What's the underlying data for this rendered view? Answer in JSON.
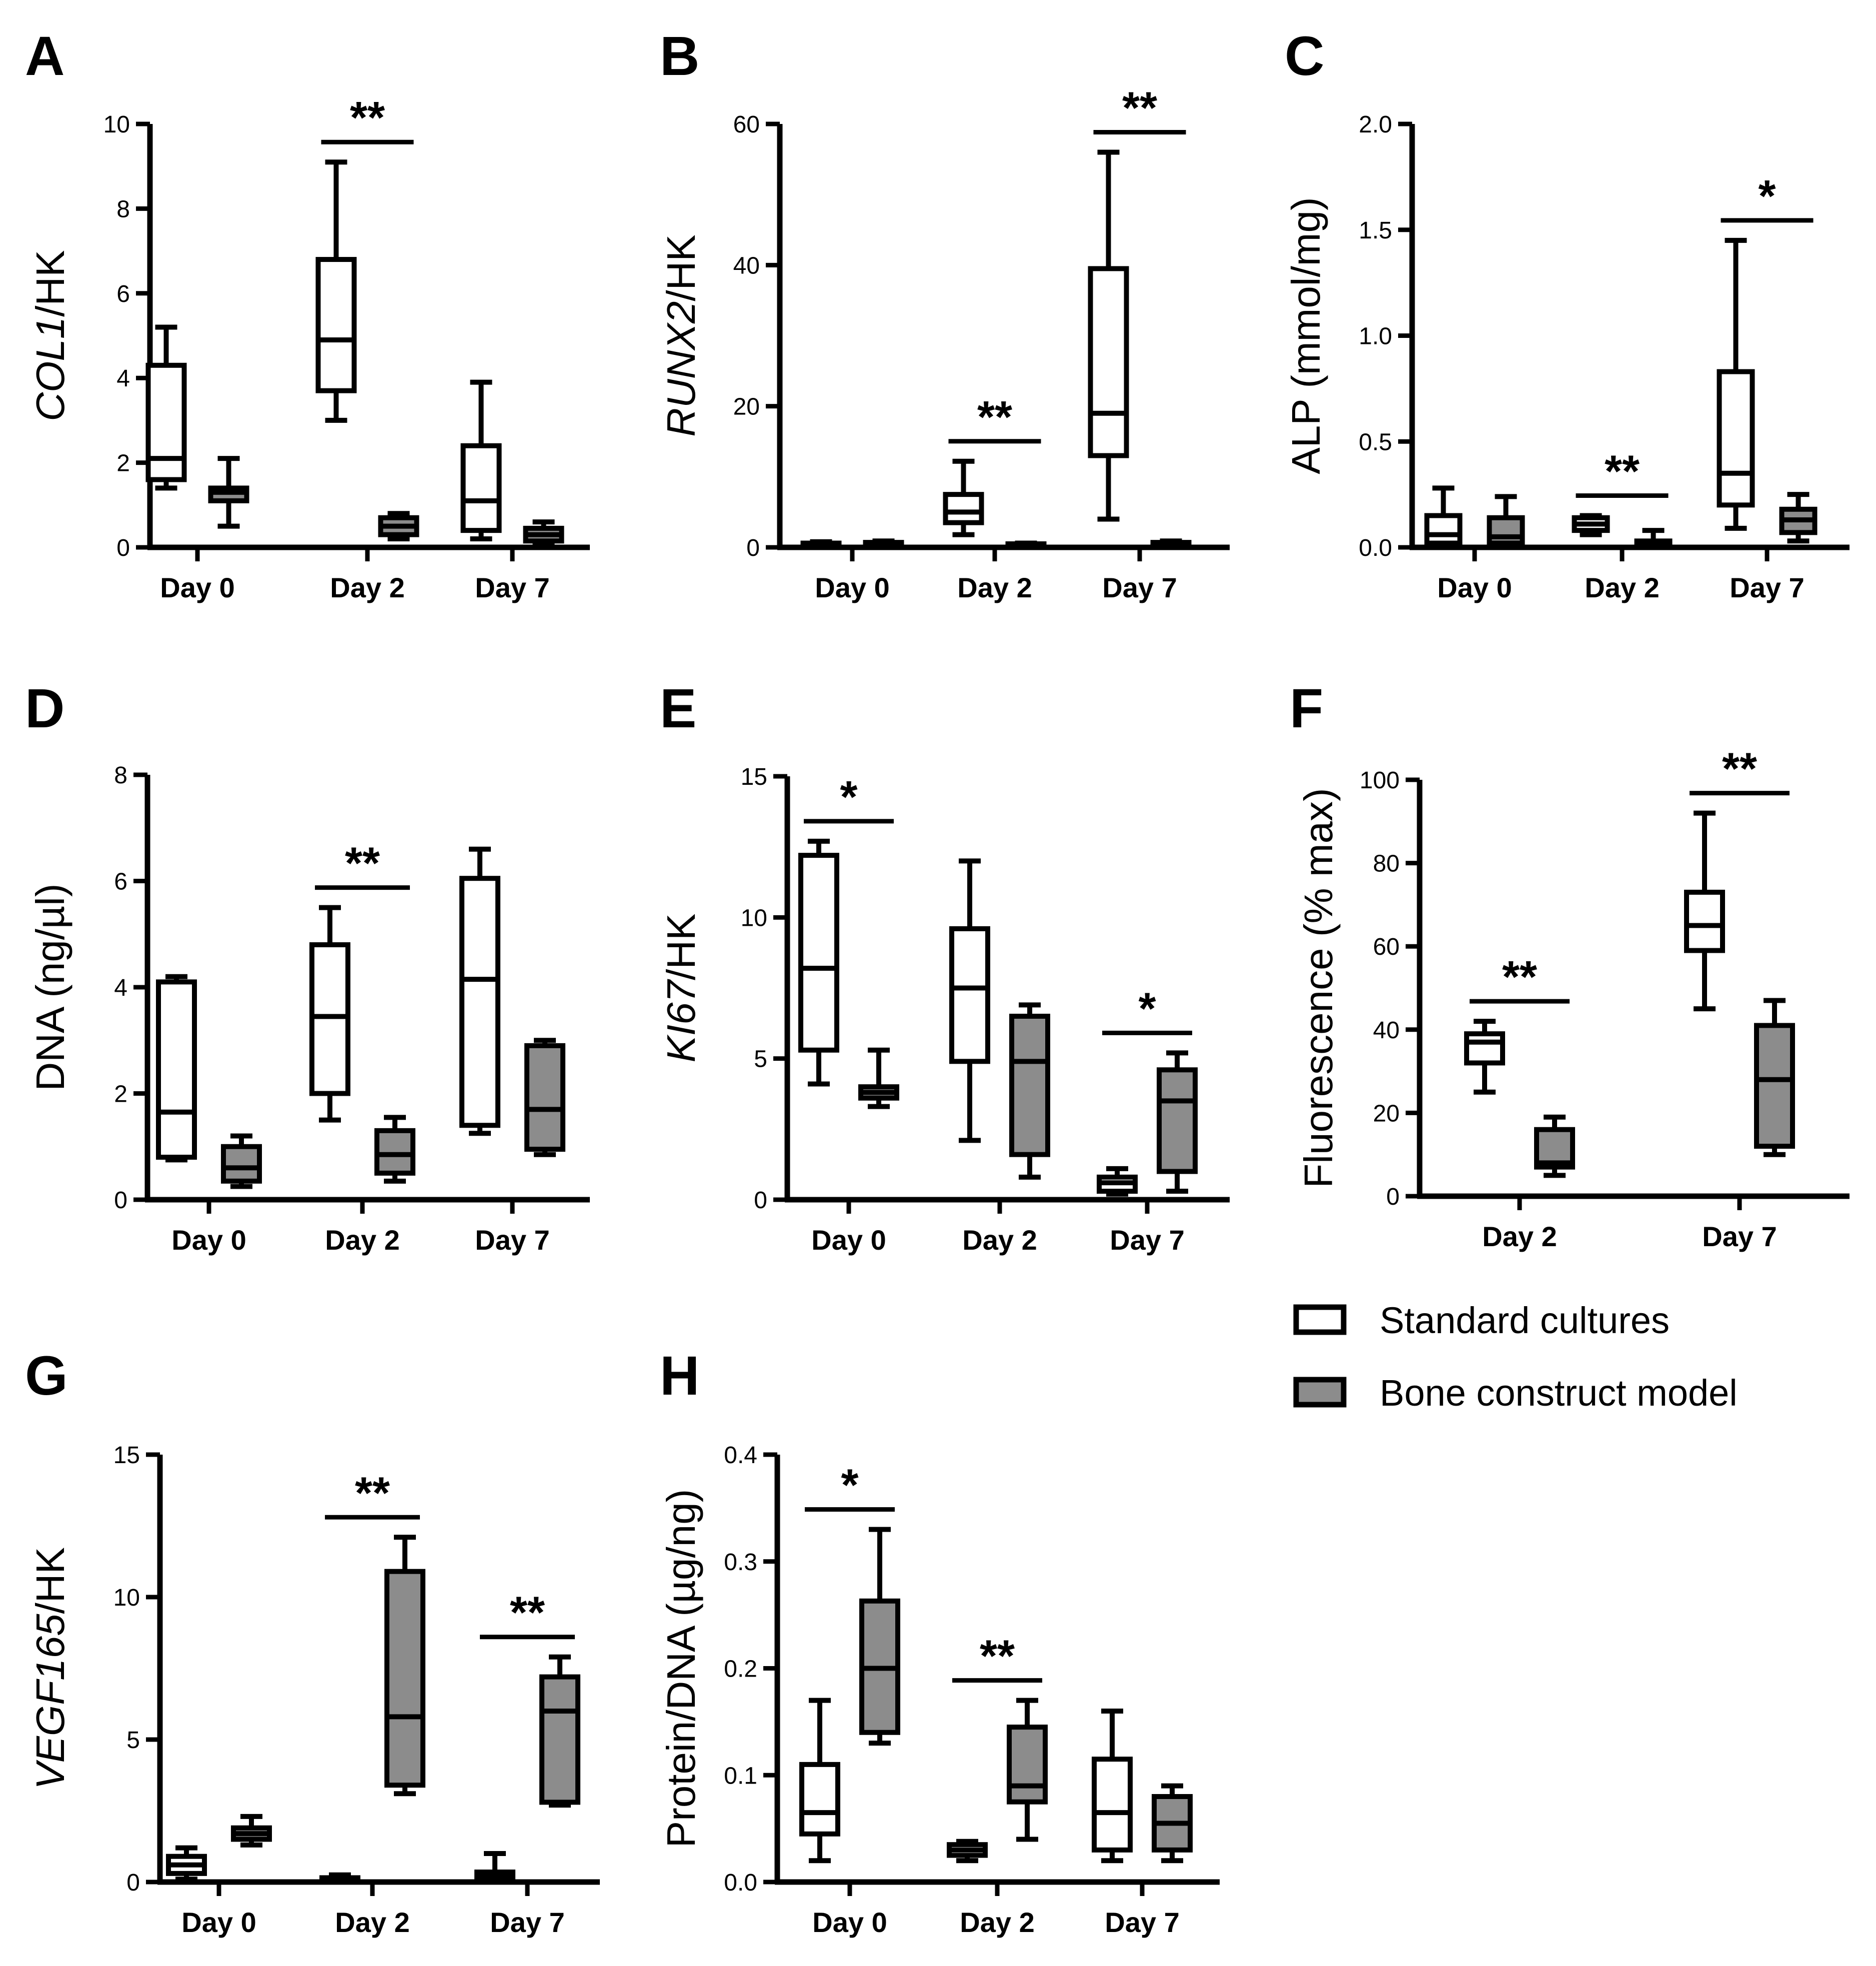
{
  "colors": {
    "standard": "#ffffff",
    "bone": "#8c8c8c",
    "stroke": "#000000"
  },
  "legend": {
    "items": [
      {
        "label": "Standard cultures",
        "color": "#ffffff"
      },
      {
        "label": "Bone construct model",
        "color": "#8c8c8c"
      }
    ]
  },
  "chart_data": [
    {
      "panel": "A",
      "type": "box",
      "ylabel": {
        "italic": "COL1",
        "plain": "/HK"
      },
      "ylim": [
        0,
        10
      ],
      "yticks": [
        0,
        2,
        4,
        6,
        8,
        10
      ],
      "ytick_labels": [
        "0",
        "2",
        "4",
        "6",
        "8",
        "10"
      ],
      "categories": [
        "Day 0",
        "Day 2",
        "Day 7"
      ],
      "groups": [
        {
          "category": "Day 0",
          "standard": [
            1.4,
            1.6,
            2.1,
            4.3,
            5.2
          ],
          "bone": [
            0.5,
            1.1,
            1.3,
            1.4,
            2.1
          ]
        },
        {
          "category": "Day 2",
          "standard": [
            3.0,
            3.7,
            4.9,
            6.8,
            9.1
          ],
          "sig": "**",
          "bone": [
            0.2,
            0.3,
            0.5,
            0.7,
            0.8
          ]
        },
        {
          "category": "Day 7",
          "standard": [
            0.2,
            0.4,
            1.1,
            2.4,
            3.9
          ],
          "bone": [
            0.1,
            0.15,
            0.3,
            0.45,
            0.6
          ]
        }
      ]
    },
    {
      "panel": "B",
      "type": "box",
      "ylabel": {
        "italic": "RUNX2",
        "plain": "/HK"
      },
      "ylim": [
        0,
        60
      ],
      "yticks": [
        0,
        20,
        40,
        60
      ],
      "ytick_labels": [
        "0",
        "20",
        "40",
        "60"
      ],
      "categories": [
        "Day 0",
        "Day 2",
        "Day 7"
      ],
      "groups": [
        {
          "category": "Day 0",
          "standard": [
            0.3,
            0.4,
            0.5,
            0.6,
            0.8
          ],
          "bone": [
            0.3,
            0.4,
            0.5,
            0.7,
            0.9
          ]
        },
        {
          "category": "Day 2",
          "standard": [
            1.8,
            3.5,
            5.0,
            7.5,
            12.2
          ],
          "sig": "**",
          "bone": [
            0.2,
            0.3,
            0.4,
            0.5,
            0.6
          ]
        },
        {
          "category": "Day 7",
          "standard": [
            4.0,
            13.0,
            19.0,
            39.5,
            56.0
          ],
          "sig": "**",
          "bone": [
            0.2,
            0.3,
            0.5,
            0.7,
            0.9
          ]
        }
      ]
    },
    {
      "panel": "C",
      "type": "box",
      "ylabel": {
        "italic": "",
        "plain": "ALP (mmol/mg)"
      },
      "ylim": [
        0,
        2.0
      ],
      "yticks": [
        0,
        0.5,
        1.0,
        1.5,
        2.0
      ],
      "ytick_labels": [
        "0.0",
        "0.5",
        "1.0",
        "1.5",
        "2.0"
      ],
      "categories": [
        "Day 0",
        "Day 2",
        "Day 7"
      ],
      "groups": [
        {
          "category": "Day 0",
          "standard": [
            0.0,
            0.02,
            0.06,
            0.15,
            0.28
          ],
          "bone": [
            0.0,
            0.02,
            0.05,
            0.14,
            0.24
          ]
        },
        {
          "category": "Day 2",
          "standard": [
            0.06,
            0.08,
            0.11,
            0.14,
            0.15
          ],
          "sig": "**",
          "bone": [
            0.0,
            0.0,
            0.01,
            0.03,
            0.08
          ]
        },
        {
          "category": "Day 7",
          "standard": [
            0.09,
            0.2,
            0.35,
            0.83,
            1.45
          ],
          "sig": "*",
          "bone": [
            0.03,
            0.07,
            0.13,
            0.18,
            0.25
          ]
        }
      ]
    },
    {
      "panel": "D",
      "type": "box",
      "ylabel": {
        "italic": "",
        "plain": "DNA (ng/µl)"
      },
      "ylim": [
        0,
        8
      ],
      "yticks": [
        0,
        2,
        4,
        6,
        8
      ],
      "ytick_labels": [
        "0",
        "2",
        "4",
        "6",
        "8"
      ],
      "categories": [
        "Day 0",
        "Day 2",
        "Day 7"
      ],
      "groups": [
        {
          "category": "Day 0",
          "standard": [
            0.75,
            0.8,
            1.65,
            4.1,
            4.2
          ],
          "bone": [
            0.25,
            0.35,
            0.6,
            1.0,
            1.2
          ]
        },
        {
          "category": "Day 2",
          "standard": [
            1.5,
            2.0,
            3.45,
            4.8,
            5.5
          ],
          "sig": "**",
          "bone": [
            0.35,
            0.5,
            0.85,
            1.3,
            1.55
          ]
        },
        {
          "category": "Day 7",
          "standard": [
            1.25,
            1.4,
            4.15,
            6.05,
            6.6
          ],
          "bone": [
            0.85,
            0.95,
            1.7,
            2.9,
            3.0
          ]
        }
      ]
    },
    {
      "panel": "E",
      "type": "box",
      "ylabel": {
        "italic": "KI67",
        "plain": "/HK"
      },
      "ylim": [
        0,
        15
      ],
      "yticks": [
        0,
        5,
        10,
        15
      ],
      "ytick_labels": [
        "0",
        "5",
        "10",
        "15"
      ],
      "categories": [
        "Day 0",
        "Day 2",
        "Day 7"
      ],
      "groups": [
        {
          "category": "Day 0",
          "standard": [
            4.1,
            5.3,
            8.2,
            12.2,
            12.7
          ],
          "sig": "*",
          "bone": [
            3.3,
            3.6,
            3.8,
            4.0,
            5.3
          ]
        },
        {
          "category": "Day 2",
          "standard": [
            2.1,
            4.9,
            7.5,
            9.6,
            12.0
          ],
          "bone": [
            0.8,
            1.6,
            4.9,
            6.5,
            6.9
          ]
        },
        {
          "category": "Day 7",
          "standard": [
            0.2,
            0.3,
            0.6,
            0.8,
            1.1
          ],
          "sig": "*",
          "bone": [
            0.3,
            1.0,
            3.5,
            4.6,
            5.2
          ]
        }
      ]
    },
    {
      "panel": "F",
      "type": "box",
      "ylabel": {
        "italic": "",
        "plain": "Fluorescence (% max)"
      },
      "ylim": [
        0,
        100
      ],
      "yticks": [
        0,
        20,
        40,
        60,
        80,
        100
      ],
      "ytick_labels": [
        "0",
        "20",
        "40",
        "60",
        "80",
        "100"
      ],
      "categories": [
        "Day 2",
        "Day 7"
      ],
      "groups": [
        {
          "category": "Day 2",
          "standard": [
            25,
            32,
            37,
            39,
            42
          ],
          "sig": "**",
          "bone": [
            5,
            7,
            8,
            16,
            19
          ]
        },
        {
          "category": "Day 7",
          "standard": [
            45,
            59,
            65,
            73,
            92
          ],
          "sig": "**",
          "bone": [
            10,
            12,
            28,
            41,
            47
          ]
        }
      ]
    },
    {
      "panel": "G",
      "type": "box",
      "ylabel": {
        "italic": "VEGF165",
        "plain": "/HK"
      },
      "ylim": [
        0,
        15
      ],
      "yticks": [
        0,
        5,
        10,
        15
      ],
      "ytick_labels": [
        "0",
        "5",
        "10",
        "15"
      ],
      "categories": [
        "Day 0",
        "Day 2",
        "Day 7"
      ],
      "groups": [
        {
          "category": "Day 0",
          "standard": [
            0.1,
            0.3,
            0.6,
            0.9,
            1.2
          ],
          "bone": [
            1.3,
            1.5,
            1.7,
            1.9,
            2.3
          ]
        },
        {
          "category": "Day 2",
          "standard": [
            0.0,
            0.02,
            0.1,
            0.15,
            0.25
          ],
          "sig": "**",
          "bone": [
            3.1,
            3.4,
            5.8,
            10.9,
            12.1
          ]
        },
        {
          "category": "Day 7",
          "standard": [
            0.0,
            0.05,
            0.2,
            0.35,
            1.0
          ],
          "sig": "**",
          "bone": [
            2.7,
            2.8,
            6.0,
            7.2,
            7.9
          ]
        }
      ]
    },
    {
      "panel": "H",
      "type": "box",
      "ylabel": {
        "italic": "",
        "plain": "Protein/DNA (µg/ng)"
      },
      "ylim": [
        0,
        0.4
      ],
      "yticks": [
        0,
        0.1,
        0.2,
        0.3,
        0.4
      ],
      "ytick_labels": [
        "0.0",
        "0.1",
        "0.2",
        "0.3",
        "0.4"
      ],
      "categories": [
        "Day 0",
        "Day 2",
        "Day 7"
      ],
      "groups": [
        {
          "category": "Day 0",
          "standard": [
            0.02,
            0.045,
            0.065,
            0.11,
            0.17
          ],
          "sig": "*",
          "bone": [
            0.13,
            0.14,
            0.2,
            0.263,
            0.33
          ]
        },
        {
          "category": "Day 2",
          "standard": [
            0.02,
            0.025,
            0.03,
            0.035,
            0.038
          ],
          "sig": "**",
          "bone": [
            0.04,
            0.075,
            0.09,
            0.145,
            0.17
          ]
        },
        {
          "category": "Day 7",
          "standard": [
            0.02,
            0.03,
            0.065,
            0.115,
            0.16
          ],
          "bone": [
            0.02,
            0.03,
            0.055,
            0.08,
            0.09
          ]
        }
      ]
    }
  ]
}
